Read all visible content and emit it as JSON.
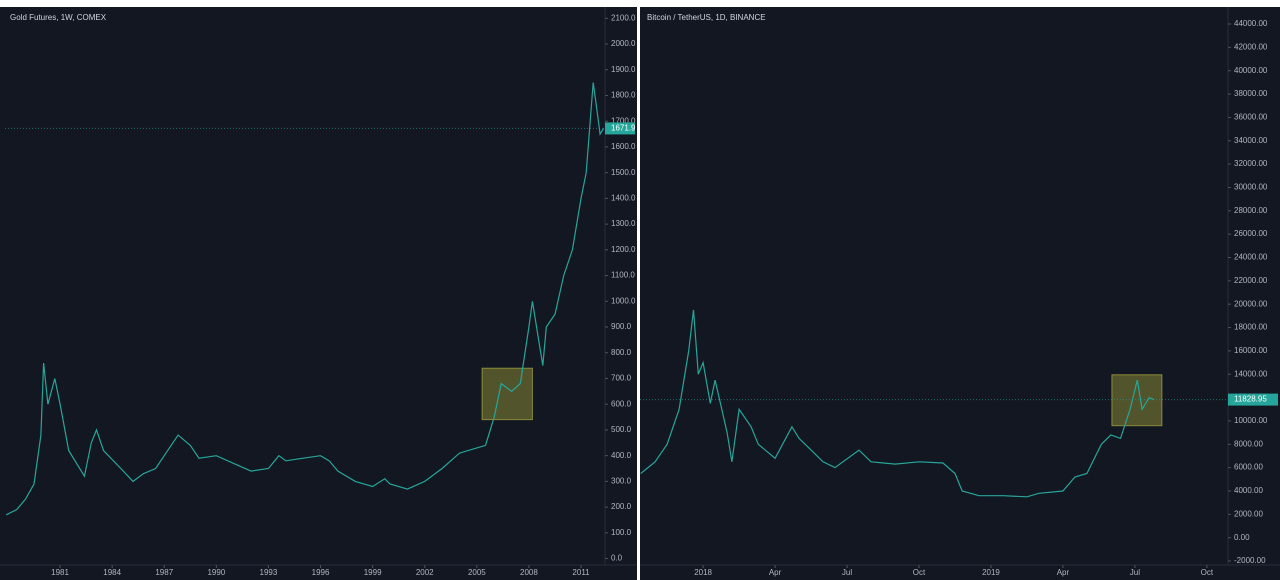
{
  "chart_data": [
    {
      "type": "line",
      "title": "Gold Futures, 1W, COMEX",
      "color": "#26a69a",
      "grid": false,
      "x": [
        1977.9,
        1978.5,
        1979,
        1979.5,
        1979.9,
        1980.05,
        1980.3,
        1980.7,
        1981,
        1981.5,
        1982.4,
        1982.8,
        1983.1,
        1983.5,
        1984.5,
        1985.2,
        1985.8,
        1986.5,
        1987,
        1987.8,
        1988.5,
        1989,
        1990,
        1991,
        1992,
        1993,
        1993.6,
        1994,
        1995,
        1996,
        1996.5,
        1997,
        1998,
        1999,
        1999.7,
        2000,
        2001,
        2002,
        2003,
        2004,
        2005,
        2005.5,
        2006,
        2006.4,
        2007,
        2007.5,
        2008,
        2008.2,
        2008.8,
        2009,
        2009.5,
        2010,
        2010.5,
        2011,
        2011.3,
        2011.7,
        2011.9,
        2012.1,
        2012.3
      ],
      "values": [
        170,
        190,
        230,
        290,
        480,
        760,
        600,
        700,
        600,
        420,
        320,
        450,
        500,
        420,
        350,
        300,
        330,
        350,
        400,
        480,
        440,
        390,
        400,
        370,
        340,
        350,
        400,
        380,
        390,
        400,
        380,
        340,
        300,
        280,
        310,
        290,
        270,
        300,
        350,
        410,
        430,
        440,
        550,
        680,
        650,
        680,
        900,
        1000,
        750,
        900,
        950,
        1100,
        1200,
        1400,
        1500,
        1850,
        1750,
        1650,
        1672
      ],
      "xlim": [
        1977.83,
        2012.38
      ],
      "xticks": [
        1981,
        1984,
        1987,
        1990,
        1993,
        1996,
        1999,
        2002,
        2005,
        2008,
        2011
      ],
      "ylim": [
        -25,
        2140
      ],
      "yticks": [
        {
          "value": 0,
          "label": "0.0"
        },
        {
          "value": 100,
          "label": "100.0"
        },
        {
          "value": 200,
          "label": "200.0"
        },
        {
          "value": 300,
          "label": "300.0"
        },
        {
          "value": 400,
          "label": "400.0"
        },
        {
          "value": 500,
          "label": "500.0"
        },
        {
          "value": 600,
          "label": "600.0"
        },
        {
          "value": 700,
          "label": "700.0"
        },
        {
          "value": 800,
          "label": "800.0"
        },
        {
          "value": 900,
          "label": "900.0"
        },
        {
          "value": 1000,
          "label": "1000.0"
        },
        {
          "value": 1100,
          "label": "1100.0"
        },
        {
          "value": 1200,
          "label": "1200.0"
        },
        {
          "value": 1300,
          "label": "1300.0"
        },
        {
          "value": 1400,
          "label": "1400.0"
        },
        {
          "value": 1500,
          "label": "1500.0"
        },
        {
          "value": 1600,
          "label": "1600.0"
        },
        {
          "value": 1700,
          "label": "1700.0"
        },
        {
          "value": 1800,
          "label": "1800.0"
        },
        {
          "value": 1900,
          "label": "1900.0"
        },
        {
          "value": 2000,
          "label": "2000.0"
        },
        {
          "value": 2100,
          "label": "2100.0"
        }
      ],
      "highlight": {
        "x": [
          2005.3,
          2008.2
        ],
        "y": [
          540,
          740
        ]
      },
      "last_price": {
        "value": 1671.9,
        "label": "1671.9"
      }
    },
    {
      "type": "line",
      "title": "Bitcoin / TetherUS, 1D, BINANCE",
      "color": "#26a69a",
      "grid": false,
      "x": [
        -2.6,
        -2,
        -1.5,
        -1,
        -0.6,
        -0.4,
        -0.2,
        0,
        0.3,
        0.5,
        1,
        1.2,
        1.5,
        2,
        2.3,
        3,
        3.7,
        4,
        4.5,
        5,
        5.5,
        6.5,
        7,
        8,
        9,
        10,
        10.5,
        10.8,
        11.5,
        12.5,
        13.5,
        14,
        15,
        15.5,
        16,
        16.6,
        17,
        17.4,
        17.8,
        18.1,
        18.3,
        18.6,
        18.8
      ],
      "values": [
        5500,
        6500,
        8000,
        11000,
        16000,
        19500,
        14000,
        15000,
        11500,
        13500,
        9000,
        6500,
        11000,
        9500,
        8000,
        6800,
        9500,
        8500,
        7500,
        6500,
        6000,
        7500,
        6500,
        6300,
        6500,
        6400,
        5500,
        4000,
        3600,
        3600,
        3500,
        3800,
        4000,
        5200,
        5500,
        8000,
        8800,
        8500,
        11000,
        13500,
        11000,
        12000,
        11829
      ],
      "xlim": [
        -2.63,
        21.88
      ],
      "xticks": [
        {
          "value": 0,
          "label": "2018"
        },
        {
          "value": 3,
          "label": "Apr"
        },
        {
          "value": 6,
          "label": "Jul"
        },
        {
          "value": 9,
          "label": "Oct"
        },
        {
          "value": 12,
          "label": "2019"
        },
        {
          "value": 15,
          "label": "Apr"
        },
        {
          "value": 18,
          "label": "Jul"
        },
        {
          "value": 21,
          "label": "Oct"
        }
      ],
      "ylim": [
        -2340,
        45370
      ],
      "yticks": [
        {
          "value": -2000,
          "label": "-2000.00"
        },
        {
          "value": 0,
          "label": "0.00"
        },
        {
          "value": 2000,
          "label": "2000.00"
        },
        {
          "value": 4000,
          "label": "4000.00"
        },
        {
          "value": 6000,
          "label": "6000.00"
        },
        {
          "value": 8000,
          "label": "8000.00"
        },
        {
          "value": 10000,
          "label": "10000.00"
        },
        {
          "value": 12000,
          "label": "12000.00"
        },
        {
          "value": 14000,
          "label": "14000.00"
        },
        {
          "value": 16000,
          "label": "16000.00"
        },
        {
          "value": 18000,
          "label": "18000.00"
        },
        {
          "value": 20000,
          "label": "20000.00"
        },
        {
          "value": 22000,
          "label": "22000.00"
        },
        {
          "value": 24000,
          "label": "24000.00"
        },
        {
          "value": 26000,
          "label": "26000.00"
        },
        {
          "value": 28000,
          "label": "28000.00"
        },
        {
          "value": 30000,
          "label": "30000.00"
        },
        {
          "value": 32000,
          "label": "32000.00"
        },
        {
          "value": 34000,
          "label": "34000.00"
        },
        {
          "value": 36000,
          "label": "36000.00"
        },
        {
          "value": 38000,
          "label": "38000.00"
        },
        {
          "value": 40000,
          "label": "40000.00"
        },
        {
          "value": 42000,
          "label": "42000.00"
        },
        {
          "value": 44000,
          "label": "44000.00"
        }
      ],
      "highlight": {
        "x": [
          17.04,
          19.125
        ],
        "y": [
          9590,
          13955
        ]
      },
      "last_price": {
        "value": 11828.95,
        "label": "11828.95"
      }
    }
  ]
}
